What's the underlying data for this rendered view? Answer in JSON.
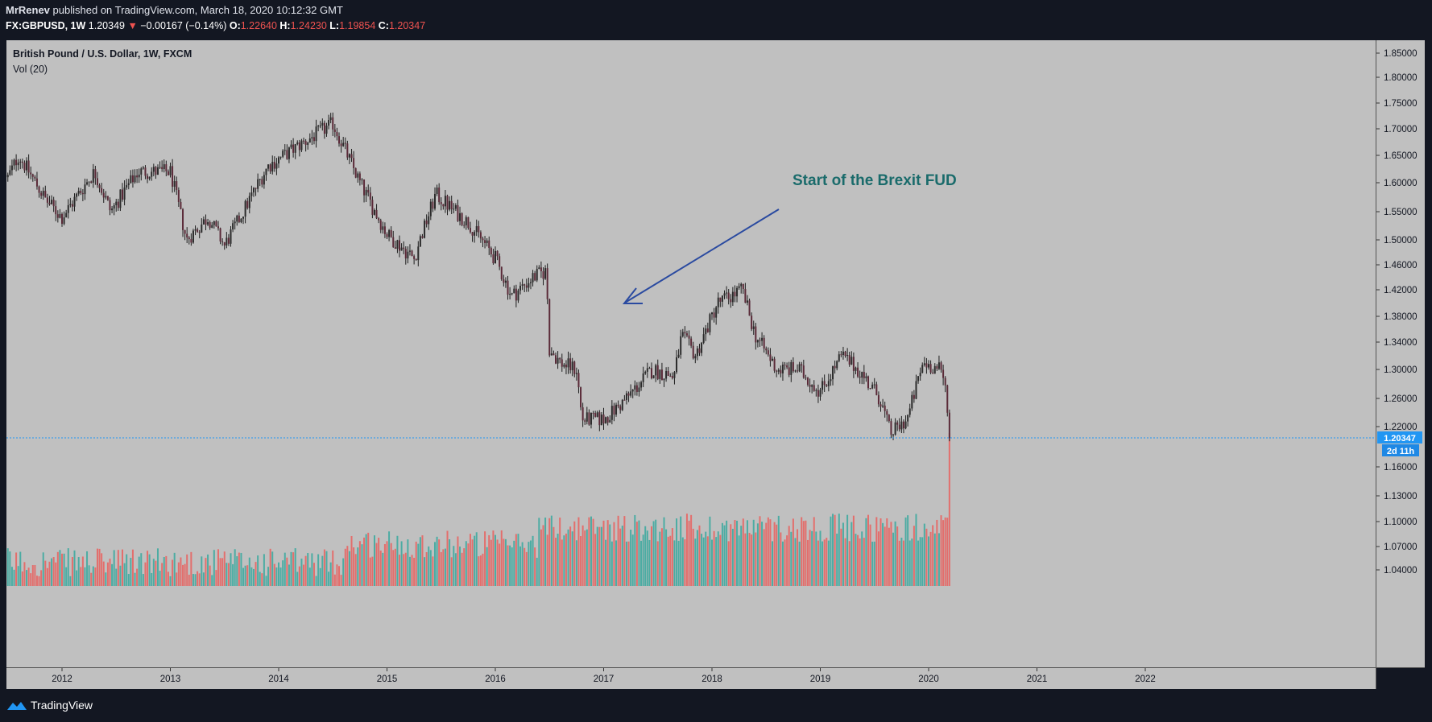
{
  "header": {
    "author": "MrRenev",
    "published_text": "published on TradingView.com, March 18, 2020 10:12:32 GMT",
    "symbol": "FX:GBPUSD, 1W",
    "last_price": "1.20349",
    "change": "−0.00167 (−0.14%)",
    "o_label": "O:",
    "o_value": "1.22640",
    "h_label": "H:",
    "h_value": "1.24230",
    "l_label": "L:",
    "l_value": "1.19854",
    "c_label": "C:",
    "c_value": "1.20347"
  },
  "legend": {
    "title": "British Pound / U.S. Dollar, 1W, FXCM",
    "volume": "Vol (20)"
  },
  "annotation": {
    "text": "Start of the Brexit FUD"
  },
  "price_badge": {
    "price": "1.20347",
    "countdown": "2d 11h"
  },
  "footer": {
    "brand": "TradingView"
  },
  "colors": {
    "background": "#c0c0c0",
    "up": "#26a69a",
    "down": "#ef5350",
    "candle_body": "#1e1e1e",
    "annotation_text": "#1a6b6b",
    "arrow": "#2a4aa0",
    "price_line": "#2196f3",
    "frame": "#131722"
  },
  "chart_data": {
    "type": "candlestick",
    "title": "British Pound / U.S. Dollar, 1W, FXCM",
    "x_tick_labels": [
      "2012",
      "2013",
      "2014",
      "2015",
      "2016",
      "2017",
      "2018",
      "2019",
      "2020",
      "2021",
      "2022"
    ],
    "x_range": [
      2011.5,
      2022.6
    ],
    "y_tick_labels": [
      "1.85000",
      "1.80000",
      "1.75000",
      "1.70000",
      "1.65000",
      "1.60000",
      "1.55000",
      "1.50000",
      "1.46000",
      "1.42000",
      "1.38000",
      "1.34000",
      "1.30000",
      "1.26000",
      "1.22000",
      "1.16000",
      "1.13000",
      "1.10000",
      "1.07000",
      "1.04000"
    ],
    "y_scale": "log",
    "y_range": [
      1.02,
      1.87
    ],
    "grid": false,
    "last_close": 1.20347,
    "key_points": [
      {
        "date": 2011.5,
        "close": 1.61
      },
      {
        "date": 2011.6,
        "close": 1.65
      },
      {
        "date": 2011.85,
        "close": 1.57
      },
      {
        "date": 2012.0,
        "close": 1.54
      },
      {
        "date": 2012.3,
        "close": 1.62
      },
      {
        "date": 2012.45,
        "close": 1.55
      },
      {
        "date": 2012.7,
        "close": 1.62
      },
      {
        "date": 2013.0,
        "close": 1.62
      },
      {
        "date": 2013.15,
        "close": 1.5
      },
      {
        "date": 2013.35,
        "close": 1.54
      },
      {
        "date": 2013.5,
        "close": 1.49
      },
      {
        "date": 2013.9,
        "close": 1.63
      },
      {
        "date": 2014.2,
        "close": 1.67
      },
      {
        "date": 2014.5,
        "close": 1.71
      },
      {
        "date": 2014.75,
        "close": 1.6
      },
      {
        "date": 2015.0,
        "close": 1.51
      },
      {
        "date": 2015.25,
        "close": 1.47
      },
      {
        "date": 2015.45,
        "close": 1.58
      },
      {
        "date": 2015.75,
        "close": 1.53
      },
      {
        "date": 2016.0,
        "close": 1.47
      },
      {
        "date": 2016.15,
        "close": 1.41
      },
      {
        "date": 2016.35,
        "close": 1.44
      },
      {
        "date": 2016.47,
        "close": 1.45
      },
      {
        "date": 2016.5,
        "close": 1.33
      },
      {
        "date": 2016.6,
        "close": 1.31
      },
      {
        "date": 2016.75,
        "close": 1.3
      },
      {
        "date": 2016.8,
        "close": 1.23
      },
      {
        "date": 2017.0,
        "close": 1.23
      },
      {
        "date": 2017.15,
        "close": 1.25
      },
      {
        "date": 2017.45,
        "close": 1.3
      },
      {
        "date": 2017.65,
        "close": 1.29
      },
      {
        "date": 2017.72,
        "close": 1.35
      },
      {
        "date": 2017.85,
        "close": 1.32
      },
      {
        "date": 2018.05,
        "close": 1.4
      },
      {
        "date": 2018.28,
        "close": 1.42
      },
      {
        "date": 2018.4,
        "close": 1.35
      },
      {
        "date": 2018.6,
        "close": 1.3
      },
      {
        "date": 2018.8,
        "close": 1.3
      },
      {
        "date": 2019.0,
        "close": 1.27
      },
      {
        "date": 2019.2,
        "close": 1.32
      },
      {
        "date": 2019.35,
        "close": 1.3
      },
      {
        "date": 2019.55,
        "close": 1.26
      },
      {
        "date": 2019.65,
        "close": 1.21
      },
      {
        "date": 2019.8,
        "close": 1.23
      },
      {
        "date": 2019.95,
        "close": 1.31
      },
      {
        "date": 2020.1,
        "close": 1.3
      },
      {
        "date": 2020.15,
        "close": 1.28
      },
      {
        "date": 2020.21,
        "close": 1.2035
      }
    ]
  }
}
